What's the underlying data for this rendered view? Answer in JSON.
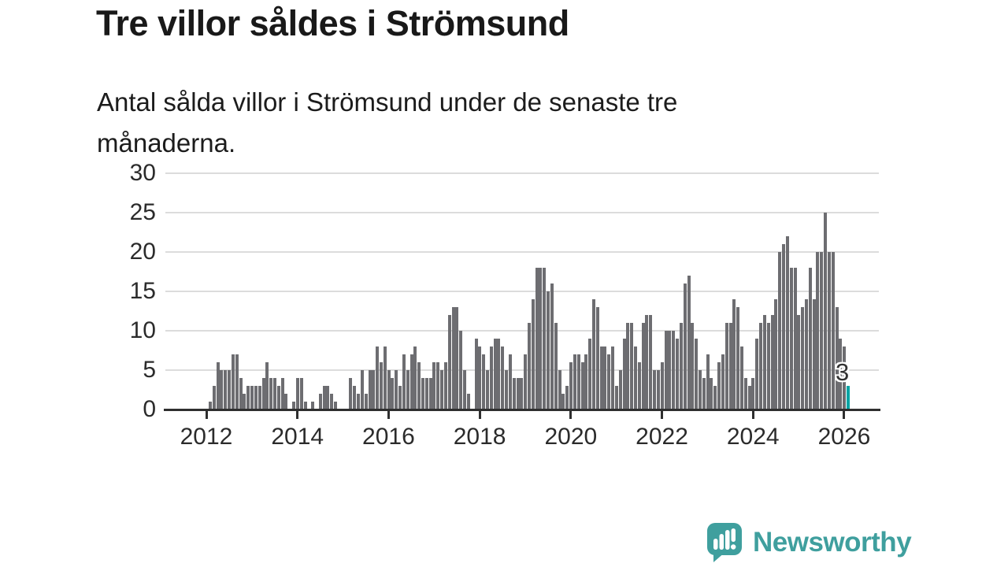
{
  "header": {
    "title": "Tre villor såldes i Strömsund",
    "subtitle": "Antal sålda villor i Strömsund under de senaste tre månaderna."
  },
  "chart_data": {
    "type": "bar",
    "title": "Tre villor såldes i Strömsund",
    "subtitle": "Antal sålda villor i Strömsund under de senaste tre månaderna.",
    "frequency": "monthly rolling 3-month count",
    "ylim": [
      0,
      30
    ],
    "y_ticks": [
      0,
      5,
      10,
      15,
      20,
      25,
      30
    ],
    "x_tick_labels": [
      "2012",
      "2014",
      "2016",
      "2018",
      "2020",
      "2022",
      "2024",
      "2026"
    ],
    "grid": true,
    "legend": "none",
    "values": [
      1,
      3,
      6,
      5,
      5,
      5,
      7,
      7,
      4,
      2,
      3,
      3,
      3,
      3,
      4,
      6,
      4,
      4,
      3,
      4,
      2,
      0,
      1,
      4,
      4,
      1,
      0,
      1,
      0,
      2,
      3,
      3,
      2,
      1,
      0,
      0,
      0,
      4,
      3,
      2,
      5,
      2,
      5,
      5,
      8,
      6,
      8,
      5,
      4,
      5,
      3,
      7,
      5,
      7,
      8,
      6,
      4,
      4,
      4,
      6,
      6,
      5,
      6,
      12,
      13,
      13,
      10,
      5,
      2,
      0,
      9,
      8,
      7,
      5,
      8,
      9,
      9,
      8,
      5,
      7,
      4,
      4,
      4,
      7,
      11,
      14,
      18,
      18,
      18,
      15,
      16,
      11,
      5,
      2,
      3,
      6,
      7,
      7,
      6,
      7,
      9,
      14,
      13,
      8,
      8,
      7,
      8,
      3,
      5,
      9,
      11,
      11,
      8,
      6,
      11,
      12,
      12,
      5,
      5,
      6,
      10,
      10,
      10,
      9,
      11,
      16,
      17,
      11,
      9,
      5,
      4,
      7,
      4,
      3,
      6,
      7,
      11,
      11,
      14,
      13,
      8,
      4,
      3,
      4,
      9,
      11,
      12,
      11,
      12,
      14,
      20,
      21,
      22,
      18,
      18,
      12,
      13,
      14,
      18,
      14,
      20,
      20,
      25,
      20,
      20,
      13,
      9,
      8,
      3
    ],
    "highlight_last_value": 3,
    "highlight_label": "3",
    "colors": {
      "bar": "#6d6d71",
      "highlight": "#00a4a4",
      "grid": "#dcdcdc",
      "axis": "#2f2f2f",
      "text": "#2b2b2b"
    }
  },
  "footer": {
    "brand": "Newsworthy",
    "logo_icon": "speech-bubble-bar-chart-exclamation",
    "brand_color": "#3f9f9e"
  }
}
